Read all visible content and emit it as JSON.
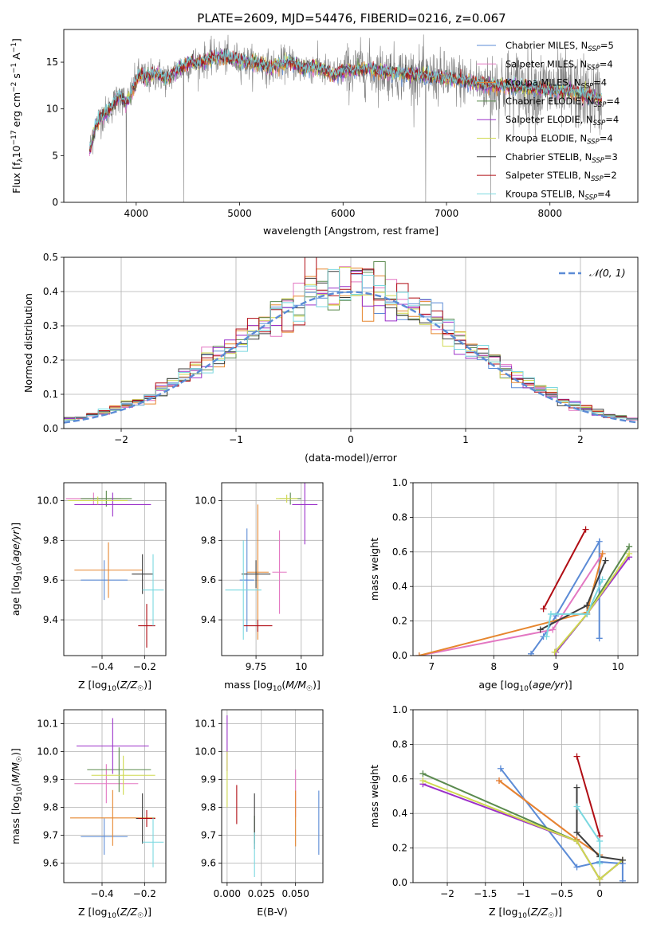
{
  "figure": {
    "title": "PLATE=2609, MJD=54476, FIBERID=0216, z=0.067"
  },
  "model_colors": [
    "#5b8bd6",
    "#e377c2",
    "#e6862e",
    "#5a8a4e",
    "#9b30c9",
    "#cfd94e",
    "#3d3d3d",
    "#b00d14",
    "#7ad8e0"
  ],
  "chart_data": [
    {
      "id": "spectrum",
      "type": "line",
      "xlabel": "wavelength [Angstrom, rest frame]",
      "ylabel": "Flux [f_λ 10^-17 erg cm^-2 s^-1 A^-1]",
      "xlim": [
        3300,
        8850
      ],
      "ylim": [
        0,
        18.5
      ],
      "xticks": [
        4000,
        5000,
        6000,
        7000,
        8000
      ],
      "yticks": [
        0,
        5,
        10,
        15
      ],
      "grid": false,
      "legend_position": "top-right",
      "legend": [
        {
          "model": "Chabrier MILES",
          "nssp": "5"
        },
        {
          "model": "Salpeter MILES",
          "nssp": "4"
        },
        {
          "model": "Kroupa MILES",
          "nssp": "4"
        },
        {
          "model": "Chabrier ELODIE",
          "nssp": "4"
        },
        {
          "model": "Salpeter ELODIE",
          "nssp": "4"
        },
        {
          "model": "Kroupa ELODIE",
          "nssp": "4"
        },
        {
          "model": "Chabrier STELIB",
          "nssp": "3"
        },
        {
          "model": "Salpeter STELIB",
          "nssp": "2"
        },
        {
          "model": "Kroupa STELIB",
          "nssp": "4"
        }
      ],
      "data_color": "#808080",
      "model_continuum": {
        "x": [
          3550,
          3600,
          3650,
          3700,
          3750,
          3800,
          3850,
          3900,
          3950,
          4000,
          4050,
          4100,
          4150,
          4200,
          4300,
          4400,
          4500,
          4600,
          4700,
          4800,
          4900,
          5000,
          5100,
          5200,
          5300,
          5400,
          5500,
          5600,
          5700,
          5800,
          5900,
          6000,
          6200,
          6400,
          6600,
          6800,
          7000,
          7200,
          7400,
          7600,
          7800,
          8000,
          8200,
          8400,
          8500
        ],
        "y": [
          5.5,
          8.0,
          9.0,
          9.5,
          10.0,
          10.8,
          11.5,
          10.5,
          11.5,
          13.2,
          13.8,
          13.2,
          13.5,
          13.8,
          13.2,
          14.2,
          14.8,
          15.0,
          15.3,
          15.6,
          15.4,
          15.2,
          14.9,
          14.8,
          14.4,
          14.8,
          15.0,
          14.3,
          14.6,
          14.2,
          13.6,
          14.0,
          14.3,
          14.0,
          13.8,
          13.5,
          13.3,
          13.0,
          12.5,
          12.5,
          12.2,
          12.0,
          11.8,
          11.3,
          11.0
        ]
      },
      "spikes": [
        {
          "x": 3905,
          "y": 0
        },
        {
          "x": 4460,
          "y": 0
        },
        {
          "x": 6800,
          "y": 0
        },
        {
          "x": 7425,
          "y": 0
        }
      ]
    },
    {
      "id": "residuals",
      "type": "histogram",
      "xlabel": "(data-model)/error",
      "ylabel": "Normed distribution",
      "xlim": [
        -2.5,
        2.5
      ],
      "ylim": [
        0,
        0.5
      ],
      "xticks": [
        -2,
        -1,
        0,
        1,
        2
      ],
      "yticks": [
        0.0,
        0.1,
        0.2,
        0.3,
        0.4,
        0.5
      ],
      "grid": true,
      "bin_width": 0.1,
      "legend_position": "top-right",
      "legend": "𝒩(0, 1)",
      "gaussian": {
        "mean": 0,
        "sigma": 1,
        "color": "#5b8bd6"
      }
    },
    {
      "id": "age-Z",
      "type": "errorbar",
      "xlabel": "Z [log10(Z/Z☉)]",
      "ylabel": "age [log10(age/yr)]",
      "xlim": [
        -0.58,
        -0.1
      ],
      "ylim": [
        9.22,
        10.09
      ],
      "xticks": [
        -0.4,
        -0.2
      ],
      "yticks": [
        9.4,
        9.6,
        9.8,
        10.0
      ],
      "grid": true,
      "points": [
        {
          "x": -0.39,
          "xerr": 0.11,
          "y": 9.6,
          "yerr": 0.1
        },
        {
          "x": -0.44,
          "xerr": 0.13,
          "y": 10.01,
          "yerr": 0.03
        },
        {
          "x": -0.37,
          "xerr": 0.16,
          "y": 9.65,
          "yerr": 0.14
        },
        {
          "x": -0.38,
          "xerr": 0.12,
          "y": 10.01,
          "yerr": 0.04
        },
        {
          "x": -0.35,
          "xerr": 0.18,
          "y": 9.98,
          "yerr": 0.06
        },
        {
          "x": -0.42,
          "xerr": 0.14,
          "y": 10.0,
          "yerr": 0.02
        },
        {
          "x": -0.21,
          "xerr": 0.05,
          "y": 9.63,
          "yerr": 0.1
        },
        {
          "x": -0.19,
          "xerr": 0.04,
          "y": 9.37,
          "yerr": 0.11
        },
        {
          "x": -0.16,
          "xerr": 0.05,
          "y": 9.55,
          "yerr": 0.18
        }
      ]
    },
    {
      "id": "age-mass",
      "type": "errorbar",
      "xlabel": "mass [log10(M/M☉)]",
      "ylabel": "",
      "xlim": [
        9.56,
        10.12
      ],
      "ylim": [
        9.22,
        10.09
      ],
      "xticks": [
        9.75,
        10.0
      ],
      "yticks": [
        9.4,
        9.6,
        9.8,
        10.0
      ],
      "grid": true,
      "points": [
        {
          "x": 9.7,
          "xerr": 0.04,
          "y": 9.6,
          "yerr": 0.26
        },
        {
          "x": 9.88,
          "xerr": 0.04,
          "y": 9.64,
          "yerr": 0.21
        },
        {
          "x": 9.76,
          "xerr": 0.06,
          "y": 9.64,
          "yerr": 0.34
        },
        {
          "x": 9.94,
          "xerr": 0.06,
          "y": 10.01,
          "yerr": 0.03
        },
        {
          "x": 10.02,
          "xerr": 0.07,
          "y": 9.98,
          "yerr": 0.2
        },
        {
          "x": 9.92,
          "xerr": 0.06,
          "y": 10.01,
          "yerr": 0.02
        },
        {
          "x": 9.75,
          "xerr": 0.08,
          "y": 9.63,
          "yerr": 0.07
        },
        {
          "x": 9.76,
          "xerr": 0.08,
          "y": 9.37,
          "yerr": 0.03
        },
        {
          "x": 9.68,
          "xerr": 0.1,
          "y": 9.55,
          "yerr": 0.25
        }
      ]
    },
    {
      "id": "weight-age",
      "type": "line",
      "xlabel": "age [log10(age/yr)]",
      "ylabel": "mass weight",
      "xlim": [
        6.7,
        10.32
      ],
      "ylim": [
        0,
        1.0
      ],
      "xticks": [
        7,
        8,
        9,
        10
      ],
      "yticks": [
        0.0,
        0.2,
        0.4,
        0.6,
        0.8,
        1.0
      ],
      "grid": true,
      "series": [
        {
          "x": [
            8.6,
            8.8,
            9.0,
            9.7,
            9.7
          ],
          "y": [
            0.01,
            0.11,
            0.23,
            0.66,
            0.1
          ]
        },
        {
          "x": [
            6.8,
            8.95,
            9.75
          ],
          "y": [
            0.0,
            0.15,
            0.59
          ]
        },
        {
          "x": [
            6.8,
            9.5,
            9.75
          ],
          "y": [
            0.0,
            0.25,
            0.59
          ]
        },
        {
          "x": [
            9.0,
            9.5,
            10.18
          ],
          "y": [
            0.02,
            0.24,
            0.63
          ]
        },
        {
          "x": [
            9.0,
            9.5,
            10.18
          ],
          "y": [
            0.02,
            0.24,
            0.57
          ]
        },
        {
          "x": [
            8.98,
            9.5,
            10.18
          ],
          "y": [
            0.02,
            0.24,
            0.59
          ]
        },
        {
          "x": [
            8.75,
            9.5,
            9.8
          ],
          "y": [
            0.15,
            0.29,
            0.55
          ]
        },
        {
          "x": [
            8.8,
            9.48
          ],
          "y": [
            0.27,
            0.73
          ]
        },
        {
          "x": [
            8.85,
            8.92,
            9.5,
            9.75
          ],
          "y": [
            0.11,
            0.24,
            0.24,
            0.44
          ]
        }
      ]
    },
    {
      "id": "mass-Z",
      "type": "errorbar",
      "xlabel": "Z [log10(Z/Z☉)]",
      "ylabel": "mass [log10(M/M☉)]",
      "xlim": [
        -0.58,
        -0.1
      ],
      "ylim": [
        9.53,
        10.15
      ],
      "xticks": [
        -0.4,
        -0.2
      ],
      "yticks": [
        9.6,
        9.7,
        9.8,
        9.9,
        10.0,
        10.1
      ],
      "grid": true,
      "points": [
        {
          "x": -0.39,
          "xerr": 0.11,
          "y": 9.695,
          "yerr": 0.065
        },
        {
          "x": -0.38,
          "xerr": 0.15,
          "y": 9.885,
          "yerr": 0.07
        },
        {
          "x": -0.35,
          "xerr": 0.2,
          "y": 9.762,
          "yerr": 0.1
        },
        {
          "x": -0.32,
          "xerr": 0.15,
          "y": 9.935,
          "yerr": 0.08
        },
        {
          "x": -0.35,
          "xerr": 0.17,
          "y": 10.02,
          "yerr": 0.1
        },
        {
          "x": -0.3,
          "xerr": 0.15,
          "y": 9.915,
          "yerr": 0.07
        },
        {
          "x": -0.21,
          "xerr": 0.03,
          "y": 9.76,
          "yerr": 0.09
        },
        {
          "x": -0.19,
          "xerr": 0.04,
          "y": 9.76,
          "yerr": 0.03
        },
        {
          "x": -0.16,
          "xerr": 0.05,
          "y": 9.675,
          "yerr": 0.09
        }
      ]
    },
    {
      "id": "mass-EBV",
      "type": "errorbar",
      "xlabel": "E(B-V)",
      "ylabel": "",
      "xlim": [
        -0.004,
        0.07
      ],
      "ylim": [
        9.53,
        10.15
      ],
      "xticks": [
        0.0,
        0.025,
        0.05
      ],
      "xtick_labels": [
        "0.000",
        "0.025",
        "0.050"
      ],
      "yticks": [
        9.6,
        9.7,
        9.8,
        9.9,
        10.0,
        10.1
      ],
      "grid": true,
      "points": [
        {
          "x": 0.067,
          "xerr": 0,
          "y": 9.745,
          "yerr": 0.115
        },
        {
          "x": 0.05,
          "xerr": 0,
          "y": 9.85,
          "yerr": 0.085
        },
        {
          "x": 0.05,
          "xerr": 0,
          "y": 9.76,
          "yerr": 0.1
        },
        {
          "x": 0.02,
          "xerr": 0,
          "y": 9.72,
          "yerr": 0.05
        },
        {
          "x": 0.0,
          "xerr": 0,
          "y": 10.03,
          "yerr": 0.1
        },
        {
          "x": 0.0,
          "xerr": 0,
          "y": 9.9,
          "yerr": 0.1
        },
        {
          "x": 0.02,
          "xerr": 0,
          "y": 9.75,
          "yerr": 0.1
        },
        {
          "x": 0.007,
          "xerr": 0,
          "y": 9.81,
          "yerr": 0.07
        },
        {
          "x": 0.02,
          "xerr": 0,
          "y": 9.63,
          "yerr": 0.08
        }
      ]
    },
    {
      "id": "weight-Z",
      "type": "line",
      "xlabel": "Z [log10(Z/Z☉)]",
      "ylabel": "mass weight",
      "xlim": [
        -2.45,
        0.5
      ],
      "ylim": [
        0,
        1.0
      ],
      "xticks": [
        -2.0,
        -1.5,
        -1.0,
        -0.5,
        0.0
      ],
      "yticks": [
        0.0,
        0.2,
        0.4,
        0.6,
        0.8,
        1.0
      ],
      "grid": true,
      "series": [
        {
          "x": [
            -1.3,
            -0.3,
            0.0,
            0.3,
            0.3
          ],
          "y": [
            0.66,
            0.09,
            0.12,
            0.11,
            0.01
          ]
        },
        {
          "x": [
            -1.32,
            -0.3,
            0.0
          ],
          "y": [
            0.59,
            0.25,
            0.16
          ]
        },
        {
          "x": [
            -1.32,
            -0.3,
            0.0
          ],
          "y": [
            0.59,
            0.25,
            0.16
          ]
        },
        {
          "x": [
            -2.32,
            -0.3,
            0.0,
            0.3
          ],
          "y": [
            0.63,
            0.24,
            0.02,
            0.13
          ]
        },
        {
          "x": [
            -2.32,
            -0.3,
            0.0,
            0.3
          ],
          "y": [
            0.57,
            0.24,
            0.02,
            0.13
          ]
        },
        {
          "x": [
            -2.32,
            -0.3,
            0.0,
            0.3
          ],
          "y": [
            0.59,
            0.24,
            0.02,
            0.13
          ]
        },
        {
          "x": [
            -0.3,
            -0.3,
            0.0,
            0.3
          ],
          "y": [
            0.55,
            0.29,
            0.15,
            0.13
          ]
        },
        {
          "x": [
            -0.3,
            0.0
          ],
          "y": [
            0.73,
            0.27
          ]
        },
        {
          "x": [
            -0.3,
            0.0,
            0.0
          ],
          "y": [
            0.44,
            0.24,
            0.11
          ]
        }
      ]
    }
  ]
}
